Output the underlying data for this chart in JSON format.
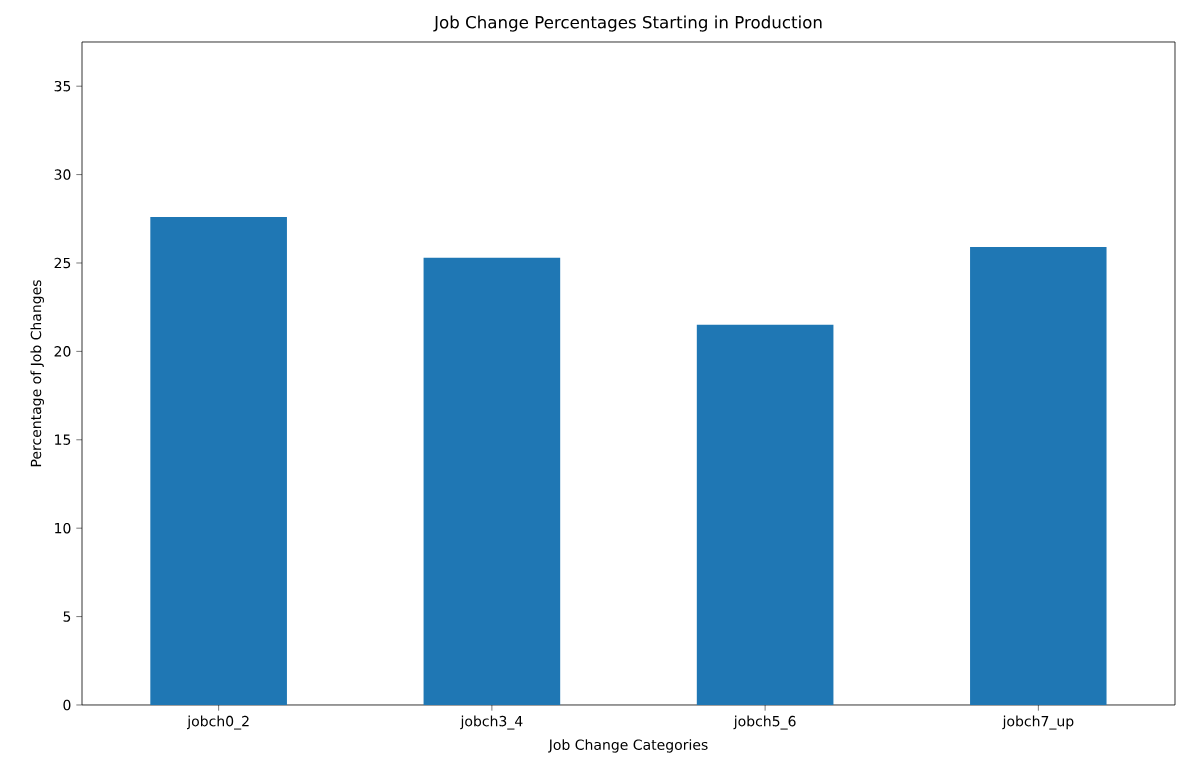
{
  "chart_data": {
    "type": "bar",
    "title": "Job Change Percentages Starting in Production",
    "xlabel": "Job Change Categories",
    "ylabel": "Percentage of Job Changes",
    "categories": [
      "jobch0_2",
      "jobch3_4",
      "jobch5_6",
      "jobch7_up"
    ],
    "values": [
      27.6,
      25.3,
      21.5,
      25.9
    ],
    "color": "#1f77b4",
    "ylim": [
      0,
      37.5
    ],
    "yticks": [
      0,
      5,
      10,
      15,
      20,
      25,
      30,
      35
    ],
    "grid": false
  }
}
